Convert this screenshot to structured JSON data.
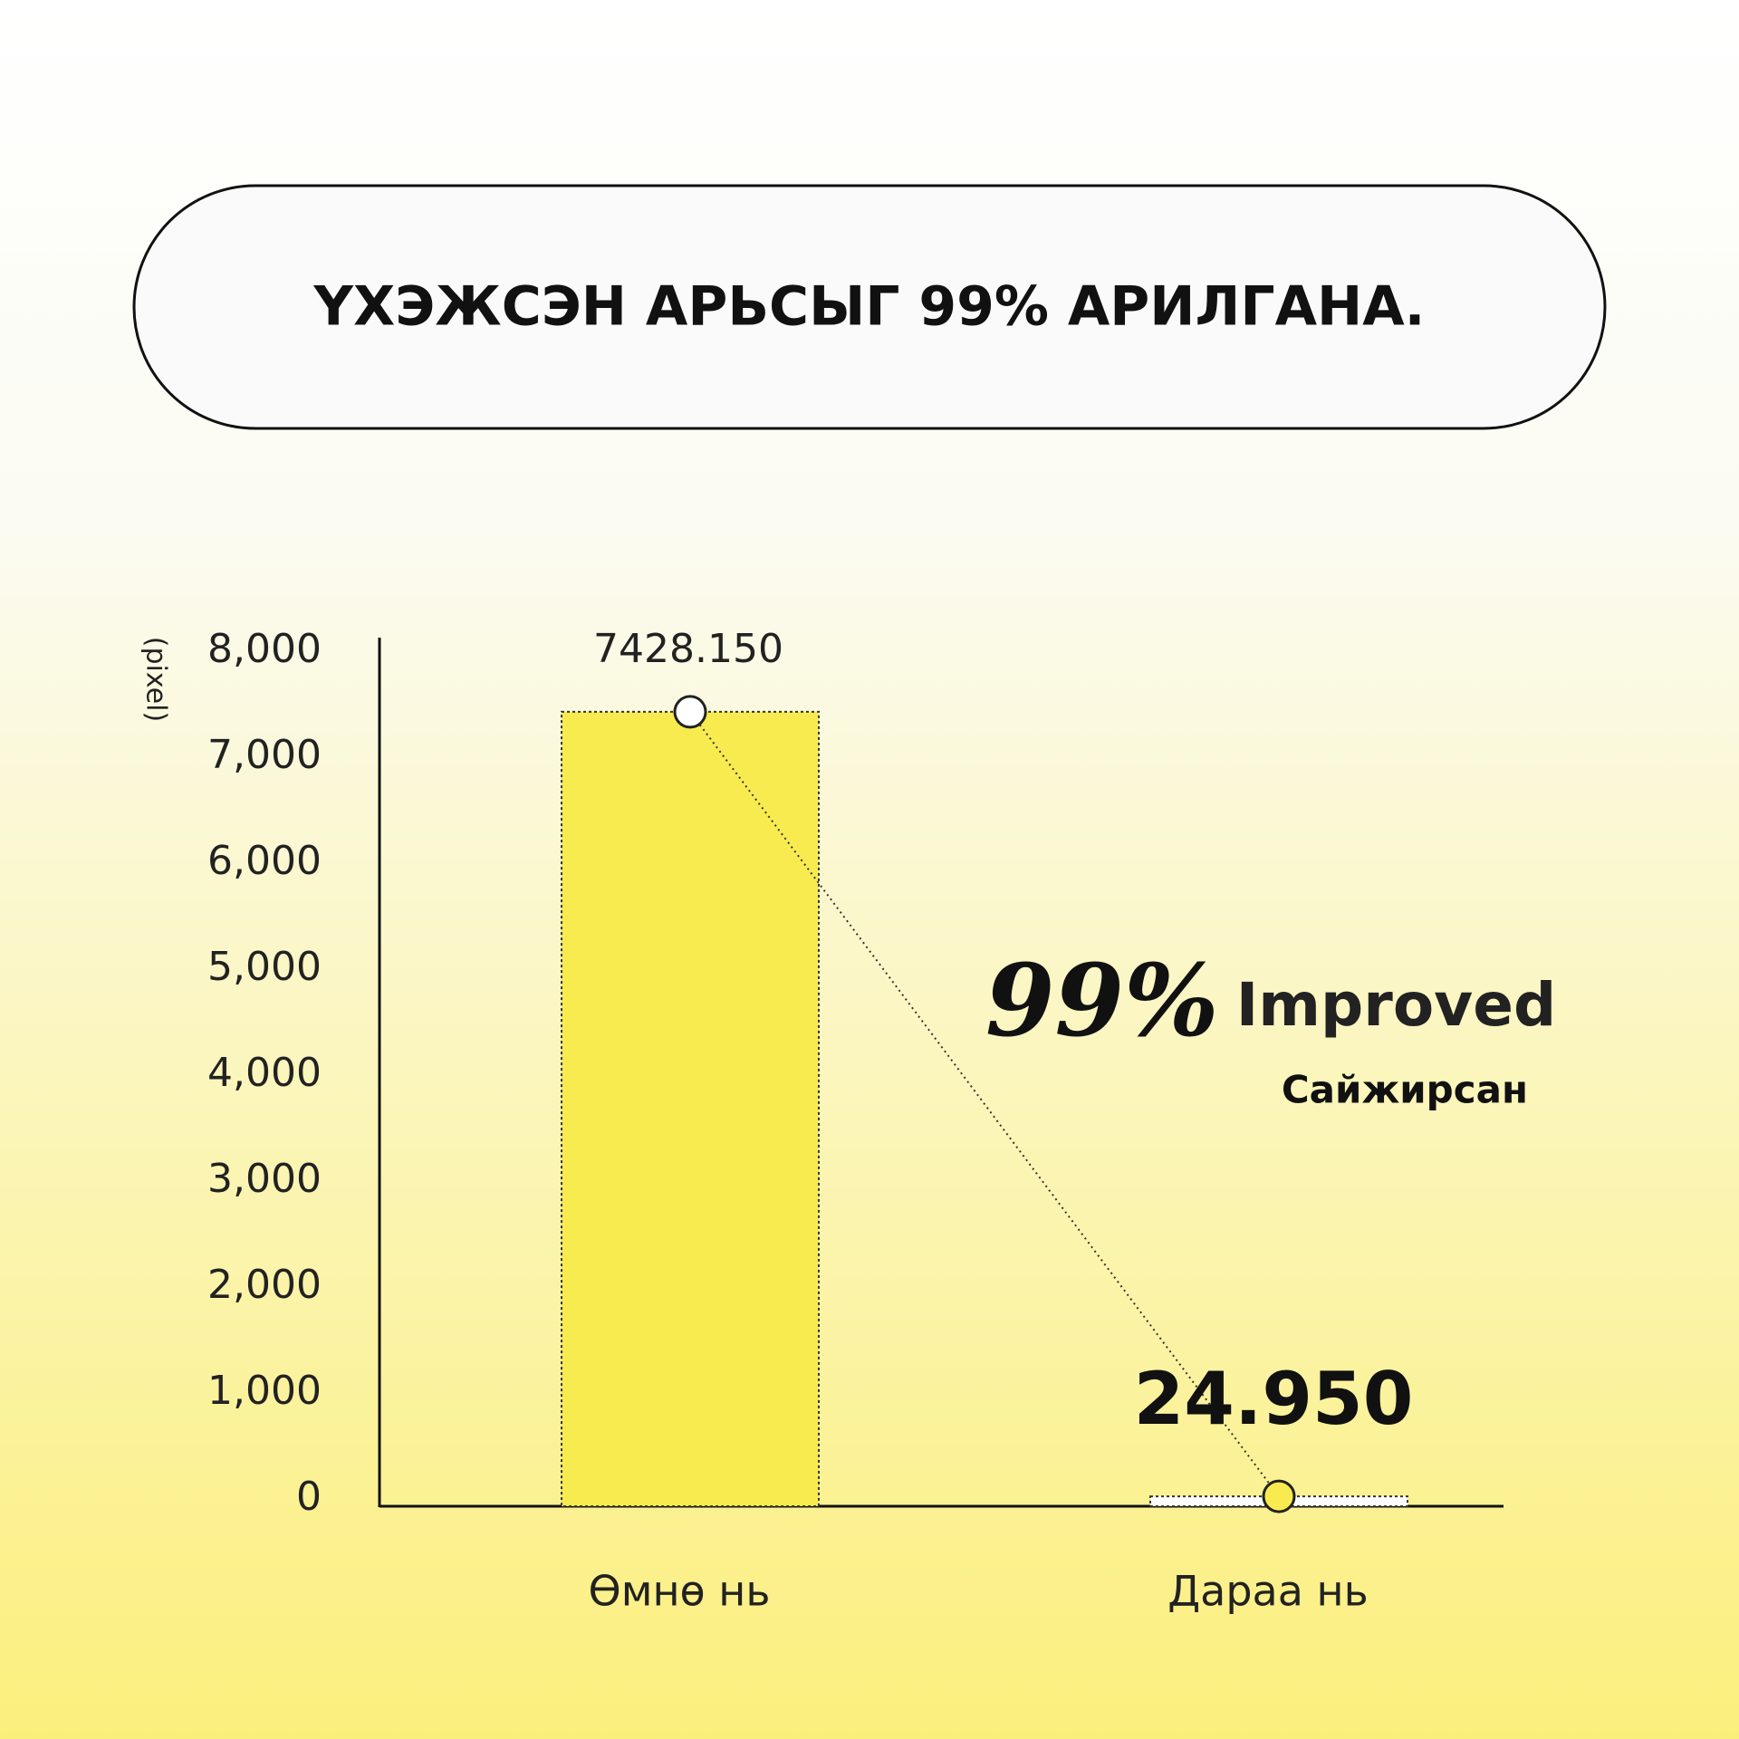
{
  "chart_data": {
    "type": "bar",
    "title": "ҮХЭЖСЭН АРЬСЫГ 99% АРИЛГАНА.",
    "y_label": "(pixel)",
    "categories": [
      "Өмнө нь",
      "Дараа нь"
    ],
    "values": [
      7428.15,
      24.95
    ],
    "value_labels": [
      "7428.150",
      "24.950"
    ],
    "colors": [
      "#f8eb4f",
      "#ffffff"
    ],
    "ylim": [
      0,
      8000
    ],
    "yticks": [
      0,
      {
        "value": 1000,
        "label": "1,000"
      },
      {
        "value": 2000,
        "label": "2,000"
      },
      {
        "value": 3000,
        "label": "3,000"
      },
      {
        "value": 4000,
        "label": "4,000"
      },
      {
        "value": 5000,
        "label": "5,000"
      },
      {
        "value": 6000,
        "label": "6,000"
      },
      {
        "value": 7000,
        "label": "7,000"
      },
      {
        "value": 8000,
        "label": "8,000"
      }
    ],
    "annotation": {
      "main": "99%",
      "suffix": "Improved",
      "sub": "Сайжирсан"
    }
  }
}
